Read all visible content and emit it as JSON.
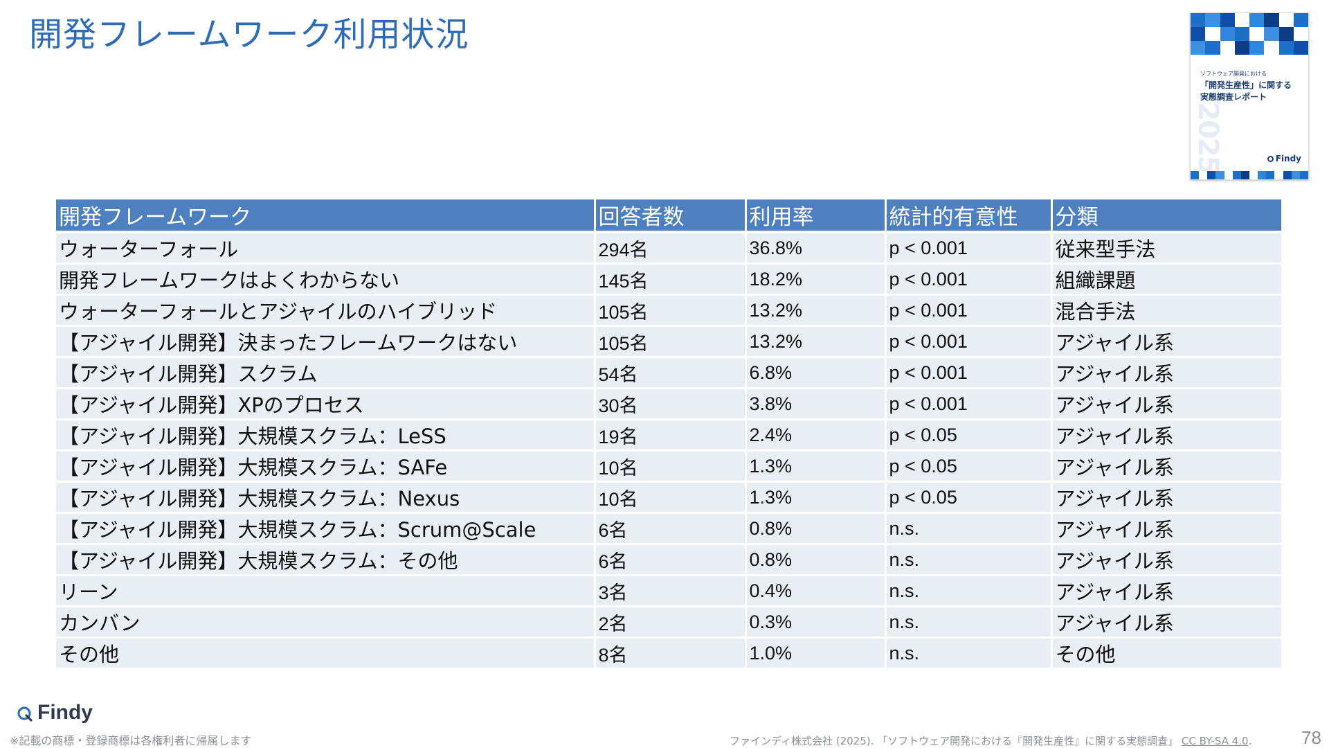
{
  "title": "開発フレームワーク利用状況",
  "cover": {
    "subtitle": "ソフトウェア開発における",
    "title_line1": "「開発生産性」に関する",
    "title_line2": "実態調査レポート",
    "year": "2025",
    "logo": "Findy",
    "icon": "report-cover-image"
  },
  "table": {
    "headers": [
      "開発フレームワーク",
      "回答者数",
      "利用率",
      "統計的有意性",
      "分類"
    ],
    "rows": [
      [
        "ウォーターフォール",
        "294名",
        "36.8%",
        "p < 0.001",
        "従来型手法"
      ],
      [
        "開発フレームワークはよくわからない",
        "145名",
        "18.2%",
        "p < 0.001",
        "組織課題"
      ],
      [
        "ウォーターフォールとアジャイルのハイブリッド",
        "105名",
        "13.2%",
        "p < 0.001",
        "混合手法"
      ],
      [
        "【アジャイル開発】決まったフレームワークはない",
        "105名",
        "13.2%",
        "p < 0.001",
        "アジャイル系"
      ],
      [
        "【アジャイル開発】スクラム",
        "54名",
        "6.8%",
        "p < 0.001",
        "アジャイル系"
      ],
      [
        "【アジャイル開発】XPのプロセス",
        "30名",
        "3.8%",
        "p < 0.001",
        "アジャイル系"
      ],
      [
        "【アジャイル開発】大規模スクラム：LeSS",
        "19名",
        "2.4%",
        "p < 0.05",
        "アジャイル系"
      ],
      [
        "【アジャイル開発】大規模スクラム：SAFe",
        "10名",
        "1.3%",
        "p < 0.05",
        "アジャイル系"
      ],
      [
        "【アジャイル開発】大規模スクラム：Nexus",
        "10名",
        "1.3%",
        "p < 0.05",
        "アジャイル系"
      ],
      [
        "【アジャイル開発】大規模スクラム：Scrum@Scale",
        "6名",
        "0.8%",
        "n.s.",
        "アジャイル系"
      ],
      [
        "【アジャイル開発】大規模スクラム：その他",
        "6名",
        "0.8%",
        "n.s.",
        "アジャイル系"
      ],
      [
        "リーン",
        "3名",
        "0.4%",
        "n.s.",
        "アジャイル系"
      ],
      [
        "カンバン",
        "2名",
        "0.3%",
        "n.s.",
        "アジャイル系"
      ],
      [
        "その他",
        "8名",
        "1.0%",
        "n.s.",
        "その他"
      ]
    ]
  },
  "footer": {
    "brand": "Findy",
    "brand_icon": "findy-logo-icon",
    "disclaimer": "※記載の商標・登録商標は各権利者に帰属します",
    "citation": "ファインディ株式会社 (2025). 「ソフトウェア開発における『開発生産性』に関する実態調査」",
    "license": "CC BY-SA 4.0",
    "citation_end": ".",
    "page_number": "78"
  },
  "colors": {
    "title": "#2e6cb5",
    "header_bg": "#4e7fbf",
    "row_bg": "#e9edf4",
    "brand": "#2f3b4c",
    "muted": "#8a8f96"
  }
}
